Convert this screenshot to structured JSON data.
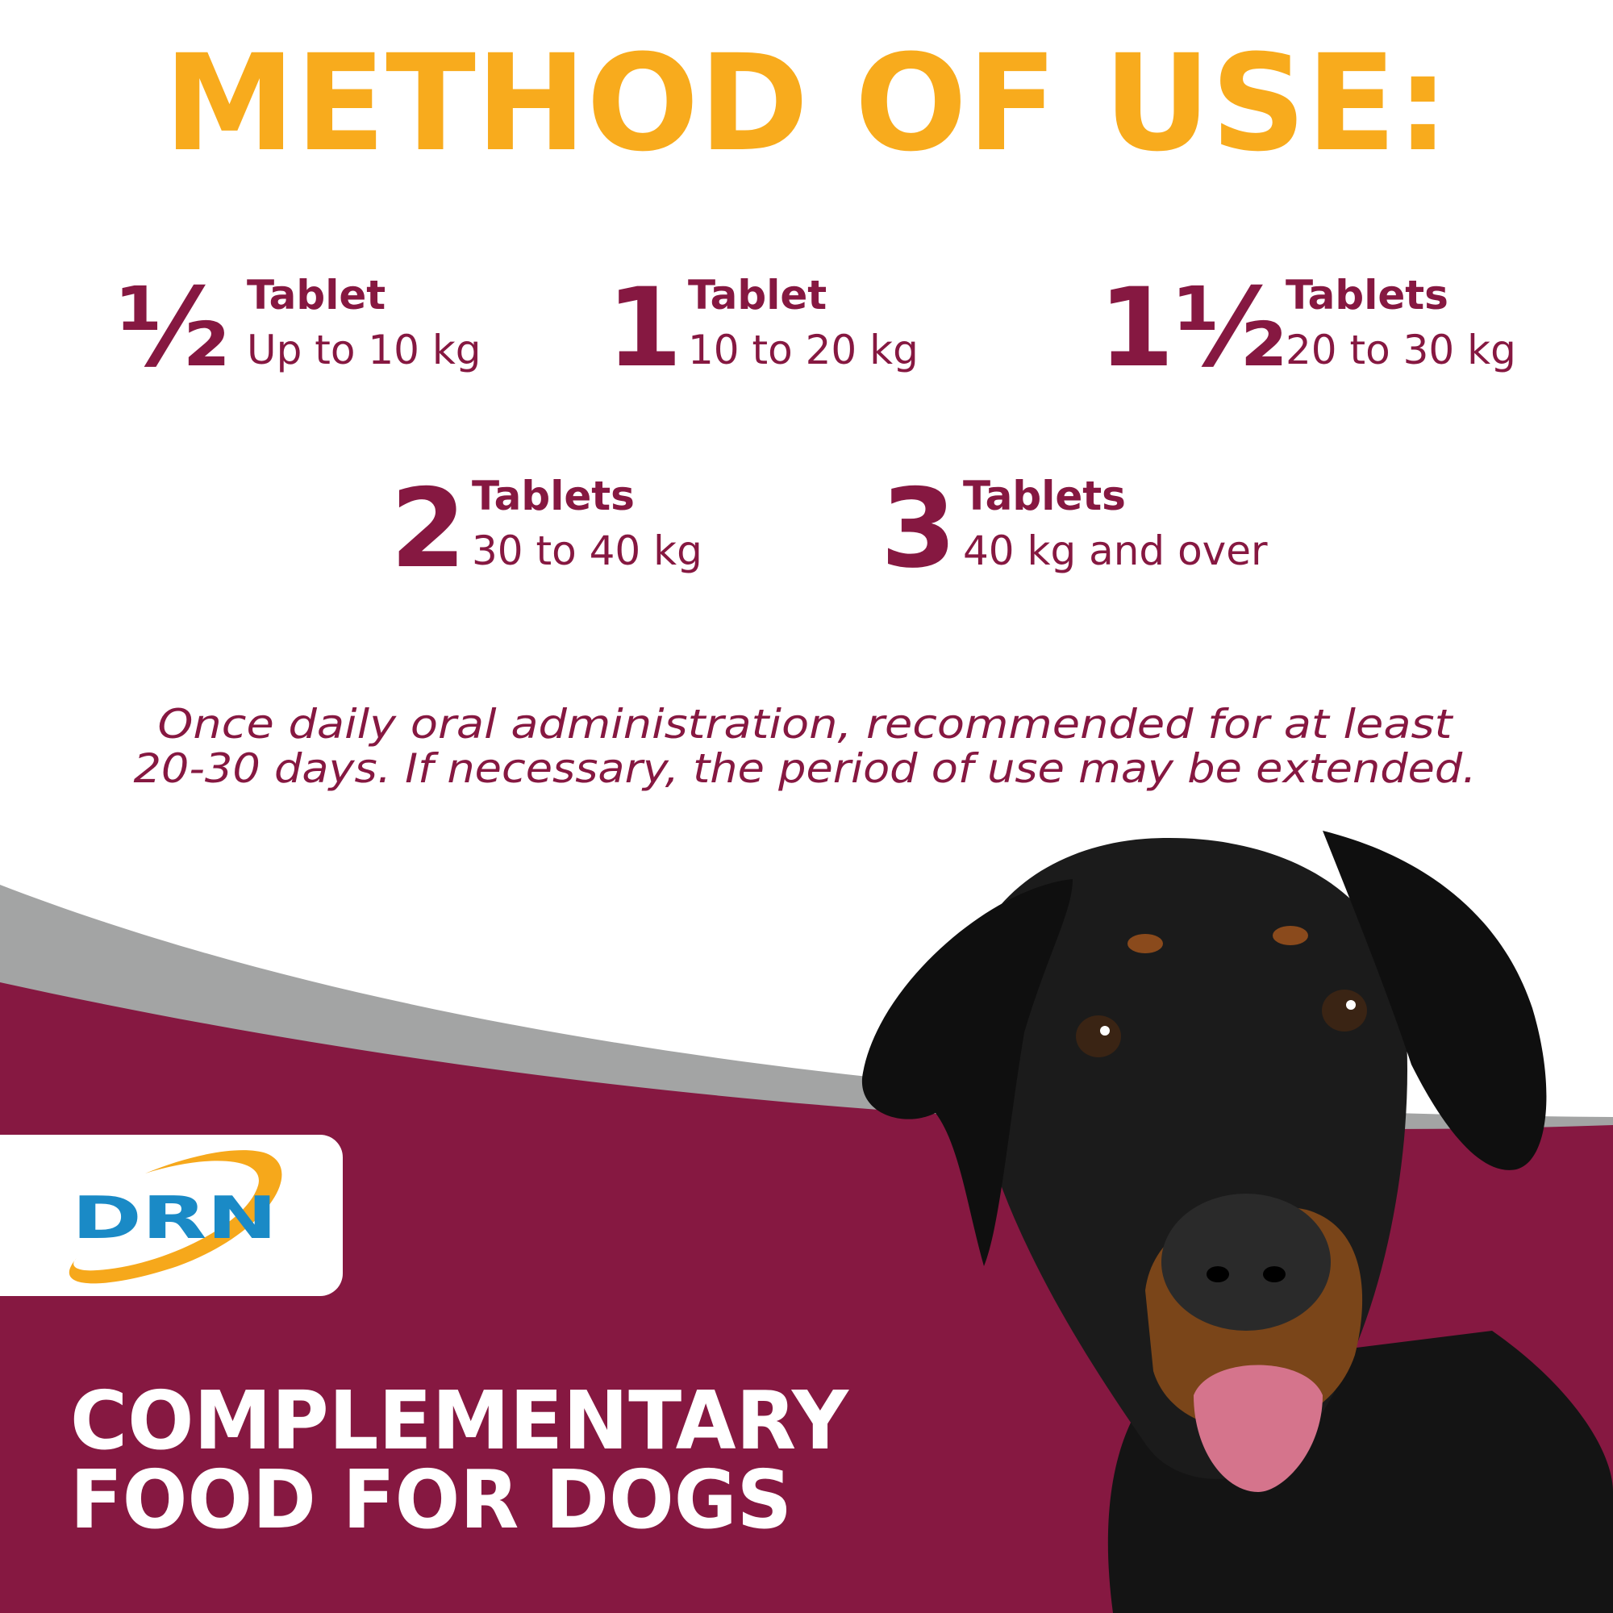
{
  "header": {
    "title": "METHOD OF USE:"
  },
  "dosages": [
    {
      "amount": "½",
      "unit": "Tablet",
      "weight": "Up to 10 kg"
    },
    {
      "amount": "1",
      "unit": "Tablet",
      "weight": "10 to 20 kg"
    },
    {
      "amount": "1½",
      "unit": "Tablets",
      "weight": "20 to 30 kg"
    },
    {
      "amount": "2",
      "unit": "Tablets",
      "weight": "30 to 40 kg"
    },
    {
      "amount": "3",
      "unit": "Tablets",
      "weight": "40 kg and over"
    }
  ],
  "note": {
    "lines": [
      "Once daily oral administration, recommended for at least",
      "20-30 days. If necessary, the period of use may be extended."
    ]
  },
  "logo": {
    "text": "DRN"
  },
  "footer": {
    "lines": [
      "COMPLEMENTARY",
      "FOOD FOR DOGS"
    ]
  }
}
